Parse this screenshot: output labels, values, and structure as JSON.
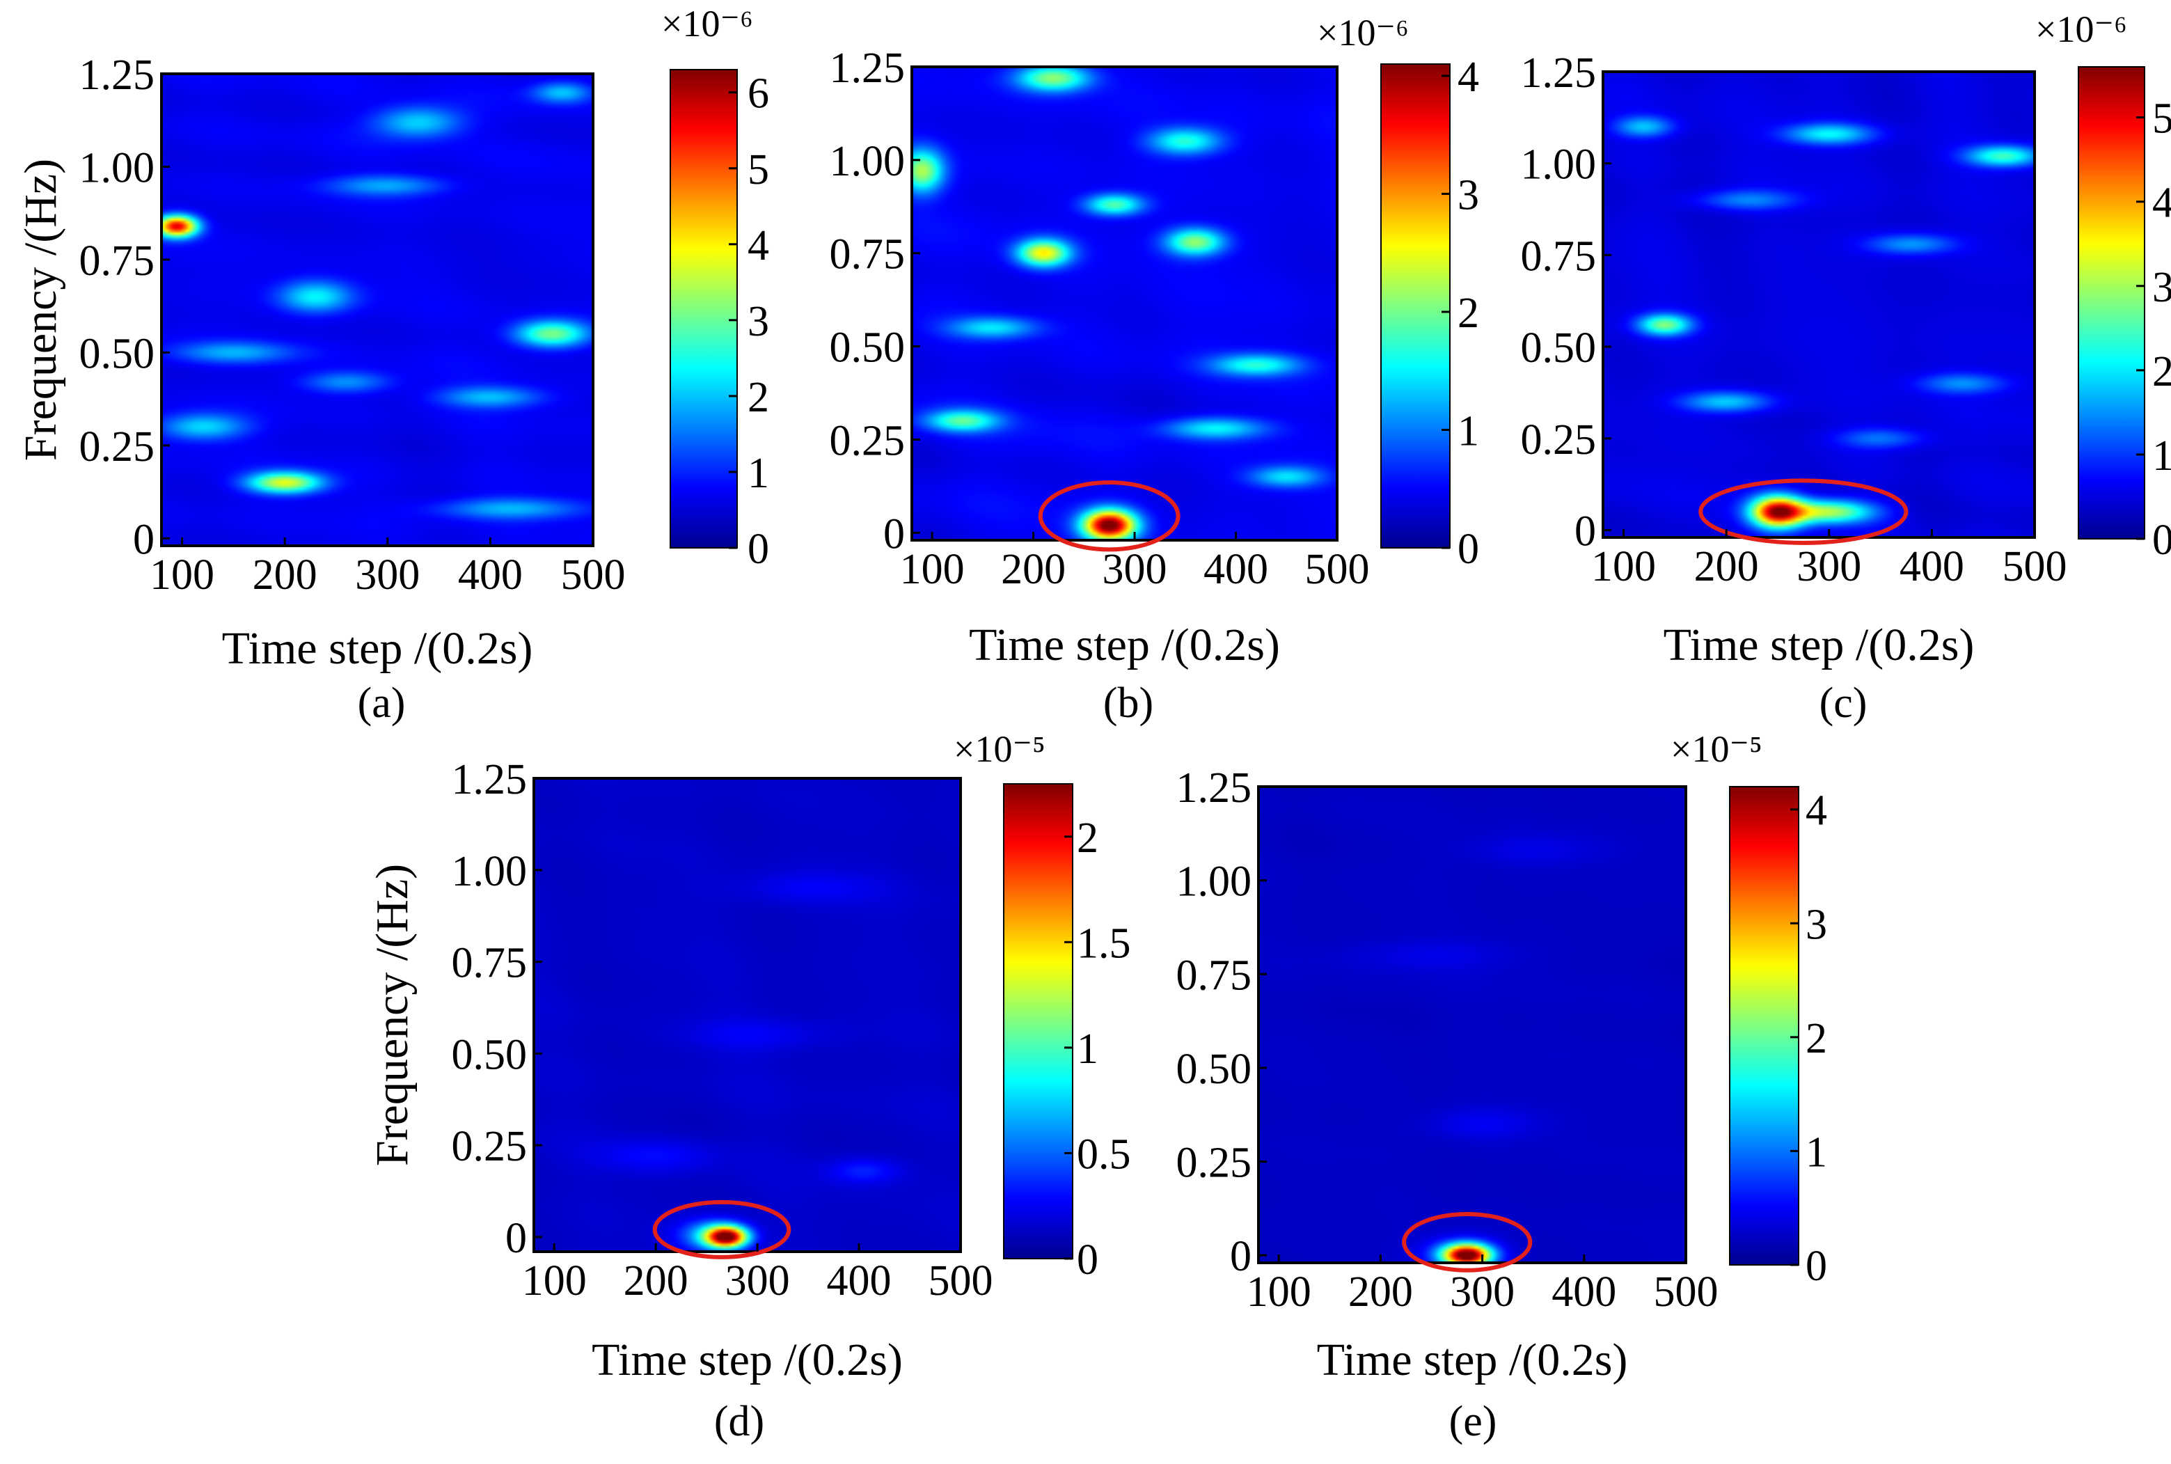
{
  "figure": {
    "colormap": "jet",
    "colormap_stops": [
      "#00008f",
      "#0000ff",
      "#0080ff",
      "#00ffff",
      "#80ff80",
      "#ffff00",
      "#ff8000",
      "#ff0000",
      "#800000"
    ],
    "ellipse_color": "#e3231b",
    "background_color": "#0d1ccc"
  },
  "chart_data": [
    {
      "panel": "a",
      "type": "heatmap",
      "caption": "(a)",
      "xlabel": "Time step /(0.2s)",
      "ylabel": "Frequency /(Hz)",
      "xlim": [
        80,
        500
      ],
      "ylim": [
        -0.02,
        1.25
      ],
      "xticks": [
        100,
        200,
        300,
        400,
        500
      ],
      "xtick_labels": [
        "100",
        "200",
        "300",
        "400",
        "500"
      ],
      "yticks": [
        0,
        0.25,
        0.5,
        0.75,
        1.0,
        1.25
      ],
      "ytick_labels": [
        "0",
        "0.25",
        "0.50",
        "0.75",
        "1.00",
        "1.25"
      ],
      "colorbar": {
        "exponent_label": "×10⁻⁶",
        "min": 0,
        "max": 6.3,
        "ticks": [
          0,
          1,
          2,
          3,
          4,
          5,
          6
        ],
        "tick_labels": [
          "0",
          "1",
          "2",
          "3",
          "4",
          "5",
          "6"
        ]
      },
      "background_value": 0.5,
      "features": [
        {
          "x": 95,
          "y": 0.84,
          "sx": 14,
          "sy": 0.02,
          "value": 5.2
        },
        {
          "x": 200,
          "y": 0.15,
          "sx": 25,
          "sy": 0.02,
          "value": 3.2
        },
        {
          "x": 460,
          "y": 0.55,
          "sx": 25,
          "sy": 0.025,
          "value": 2.6
        },
        {
          "x": 330,
          "y": 1.12,
          "sx": 30,
          "sy": 0.03,
          "value": 1.6
        },
        {
          "x": 230,
          "y": 0.65,
          "sx": 25,
          "sy": 0.03,
          "value": 1.7
        },
        {
          "x": 120,
          "y": 0.3,
          "sx": 30,
          "sy": 0.025,
          "value": 1.6
        },
        {
          "x": 470,
          "y": 1.2,
          "sx": 20,
          "sy": 0.02,
          "value": 1.4
        },
        {
          "x": 400,
          "y": 0.38,
          "sx": 35,
          "sy": 0.02,
          "value": 1.3
        },
        {
          "x": 150,
          "y": 0.5,
          "sx": 40,
          "sy": 0.02,
          "value": 1.2
        },
        {
          "x": 300,
          "y": 0.95,
          "sx": 40,
          "sy": 0.02,
          "value": 1.2
        },
        {
          "x": 420,
          "y": 0.08,
          "sx": 50,
          "sy": 0.02,
          "value": 1.3
        },
        {
          "x": 260,
          "y": 0.42,
          "sx": 30,
          "sy": 0.02,
          "value": 1.1
        }
      ]
    },
    {
      "panel": "b",
      "type": "heatmap",
      "caption": "(b)",
      "xlabel": "Time step /(0.2s)",
      "ylabel": "",
      "xlim": [
        80,
        500
      ],
      "ylim": [
        -0.02,
        1.25
      ],
      "xticks": [
        100,
        200,
        300,
        400,
        500
      ],
      "xtick_labels": [
        "100",
        "200",
        "300",
        "400",
        "500"
      ],
      "yticks": [
        0,
        0.25,
        0.5,
        0.75,
        1.0,
        1.25
      ],
      "ytick_labels": [
        "0",
        "0.25",
        "0.50",
        "0.75",
        "1.00",
        "1.25"
      ],
      "colorbar": {
        "exponent_label": "×10⁻⁶",
        "min": 0,
        "max": 4.1,
        "ticks": [
          0,
          1,
          2,
          3,
          4
        ],
        "tick_labels": [
          "0",
          "1",
          "2",
          "3",
          "4"
        ]
      },
      "background_value": 0.35,
      "features": [
        {
          "x": 275,
          "y": 0.02,
          "sx": 18,
          "sy": 0.028,
          "value": 3.9
        },
        {
          "x": 210,
          "y": 0.75,
          "sx": 18,
          "sy": 0.025,
          "value": 2.2
        },
        {
          "x": 90,
          "y": 0.97,
          "sx": 15,
          "sy": 0.04,
          "value": 1.8
        },
        {
          "x": 220,
          "y": 1.22,
          "sx": 25,
          "sy": 0.025,
          "value": 1.7
        },
        {
          "x": 360,
          "y": 0.78,
          "sx": 20,
          "sy": 0.025,
          "value": 1.7
        },
        {
          "x": 280,
          "y": 0.88,
          "sx": 20,
          "sy": 0.02,
          "value": 1.5
        },
        {
          "x": 130,
          "y": 0.3,
          "sx": 25,
          "sy": 0.02,
          "value": 1.4
        },
        {
          "x": 350,
          "y": 1.05,
          "sx": 25,
          "sy": 0.025,
          "value": 1.3
        },
        {
          "x": 420,
          "y": 0.45,
          "sx": 30,
          "sy": 0.02,
          "value": 1.2
        },
        {
          "x": 380,
          "y": 0.28,
          "sx": 35,
          "sy": 0.02,
          "value": 1.1
        },
        {
          "x": 160,
          "y": 0.55,
          "sx": 30,
          "sy": 0.02,
          "value": 1.0
        },
        {
          "x": 450,
          "y": 0.15,
          "sx": 25,
          "sy": 0.02,
          "value": 1.0
        }
      ],
      "annotation": {
        "shape": "ellipse",
        "cx": 275,
        "cy": 0.045,
        "rx": 68,
        "ry": 0.09
      }
    },
    {
      "panel": "c",
      "type": "heatmap",
      "caption": "(c)",
      "xlabel": "Time step /(0.2s)",
      "ylabel": "",
      "xlim": [
        80,
        500
      ],
      "ylim": [
        -0.02,
        1.25
      ],
      "xticks": [
        100,
        200,
        300,
        400,
        500
      ],
      "xtick_labels": [
        "100",
        "200",
        "300",
        "400",
        "500"
      ],
      "yticks": [
        0,
        0.25,
        0.5,
        0.75,
        1.0,
        1.25
      ],
      "ytick_labels": [
        "0",
        "0.25",
        "0.50",
        "0.75",
        "1.00",
        "1.25"
      ],
      "colorbar": {
        "exponent_label": "×10⁻⁶",
        "min": 0,
        "max": 5.6,
        "ticks": [
          0,
          1,
          2,
          3,
          4,
          5
        ],
        "tick_labels": [
          "0",
          "1",
          "2",
          "3",
          "4",
          "5"
        ]
      },
      "background_value": 0.35,
      "features": [
        {
          "x": 250,
          "y": 0.05,
          "sx": 18,
          "sy": 0.03,
          "value": 4.8
        },
        {
          "x": 300,
          "y": 0.05,
          "sx": 30,
          "sy": 0.022,
          "value": 2.6
        },
        {
          "x": 140,
          "y": 0.56,
          "sx": 18,
          "sy": 0.02,
          "value": 2.3
        },
        {
          "x": 470,
          "y": 1.02,
          "sx": 25,
          "sy": 0.02,
          "value": 2.0
        },
        {
          "x": 300,
          "y": 1.08,
          "sx": 30,
          "sy": 0.02,
          "value": 1.6
        },
        {
          "x": 200,
          "y": 0.35,
          "sx": 30,
          "sy": 0.02,
          "value": 1.4
        },
        {
          "x": 120,
          "y": 1.1,
          "sx": 20,
          "sy": 0.02,
          "value": 1.3
        },
        {
          "x": 380,
          "y": 0.78,
          "sx": 30,
          "sy": 0.02,
          "value": 1.1
        },
        {
          "x": 430,
          "y": 0.4,
          "sx": 30,
          "sy": 0.02,
          "value": 1.0
        },
        {
          "x": 220,
          "y": 0.9,
          "sx": 35,
          "sy": 0.02,
          "value": 1.0
        },
        {
          "x": 350,
          "y": 0.25,
          "sx": 30,
          "sy": 0.02,
          "value": 0.9
        }
      ],
      "annotation": {
        "shape": "ellipse",
        "cx": 275,
        "cy": 0.05,
        "rx": 100,
        "ry": 0.085
      }
    },
    {
      "panel": "d",
      "type": "heatmap",
      "caption": "(d)",
      "xlabel": "Time step /(0.2s)",
      "ylabel": "Frequency /(Hz)",
      "xlim": [
        80,
        500
      ],
      "ylim": [
        -0.04,
        1.25
      ],
      "xticks": [
        100,
        200,
        300,
        400,
        500
      ],
      "xtick_labels": [
        "100",
        "200",
        "300",
        "400",
        "500"
      ],
      "yticks": [
        0,
        0.25,
        0.5,
        0.75,
        1.0,
        1.25
      ],
      "ytick_labels": [
        "0",
        "0.25",
        "0.50",
        "0.75",
        "1.00",
        "1.25"
      ],
      "colorbar": {
        "exponent_label": "×10⁻⁵",
        "min": 0,
        "max": 2.25,
        "ticks": [
          0,
          0.5,
          1,
          1.5,
          2
        ],
        "tick_labels": [
          "0",
          "0.5",
          "1",
          "1.5",
          "2"
        ]
      },
      "background_value": 0.08,
      "features": [
        {
          "x": 270,
          "y": 0.0,
          "sx": 14,
          "sy": 0.02,
          "value": 2.0
        },
        {
          "x": 255,
          "y": 0.005,
          "sx": 22,
          "sy": 0.03,
          "value": 0.6
        },
        {
          "x": 405,
          "y": 0.18,
          "sx": 25,
          "sy": 0.025,
          "value": 0.22
        },
        {
          "x": 200,
          "y": 0.22,
          "sx": 40,
          "sy": 0.03,
          "value": 0.15
        },
        {
          "x": 300,
          "y": 0.55,
          "sx": 50,
          "sy": 0.03,
          "value": 0.12
        },
        {
          "x": 350,
          "y": 0.95,
          "sx": 50,
          "sy": 0.03,
          "value": 0.12
        }
      ],
      "annotation": {
        "shape": "ellipse",
        "cx": 265,
        "cy": 0.02,
        "rx": 66,
        "ry": 0.075
      }
    },
    {
      "panel": "e",
      "type": "heatmap",
      "caption": "(e)",
      "xlabel": "Time step /(0.2s)",
      "ylabel": "",
      "xlim": [
        80,
        500
      ],
      "ylim": [
        -0.02,
        1.25
      ],
      "xticks": [
        100,
        200,
        300,
        400,
        500
      ],
      "xtick_labels": [
        "100",
        "200",
        "300",
        "400",
        "500"
      ],
      "yticks": [
        0,
        0.25,
        0.5,
        0.75,
        1.0,
        1.25
      ],
      "ytick_labels": [
        "0",
        "0.25",
        "0.50",
        "0.75",
        "1.00",
        "1.25"
      ],
      "colorbar": {
        "exponent_label": "×10⁻⁵",
        "min": 0,
        "max": 4.2,
        "ticks": [
          0,
          1,
          2,
          3,
          4
        ],
        "tick_labels": [
          "0",
          "1",
          "2",
          "3",
          "4"
        ]
      },
      "background_value": 0.12,
      "features": [
        {
          "x": 285,
          "y": 0.0,
          "sx": 16,
          "sy": 0.02,
          "value": 3.8
        },
        {
          "x": 280,
          "y": 0.005,
          "sx": 25,
          "sy": 0.03,
          "value": 0.8
        },
        {
          "x": 300,
          "y": 0.35,
          "sx": 40,
          "sy": 0.03,
          "value": 0.25
        },
        {
          "x": 250,
          "y": 0.8,
          "sx": 60,
          "sy": 0.03,
          "value": 0.18
        },
        {
          "x": 350,
          "y": 1.08,
          "sx": 50,
          "sy": 0.03,
          "value": 0.18
        }
      ],
      "annotation": {
        "shape": "ellipse",
        "cx": 285,
        "cy": 0.035,
        "rx": 62,
        "ry": 0.075
      }
    }
  ]
}
